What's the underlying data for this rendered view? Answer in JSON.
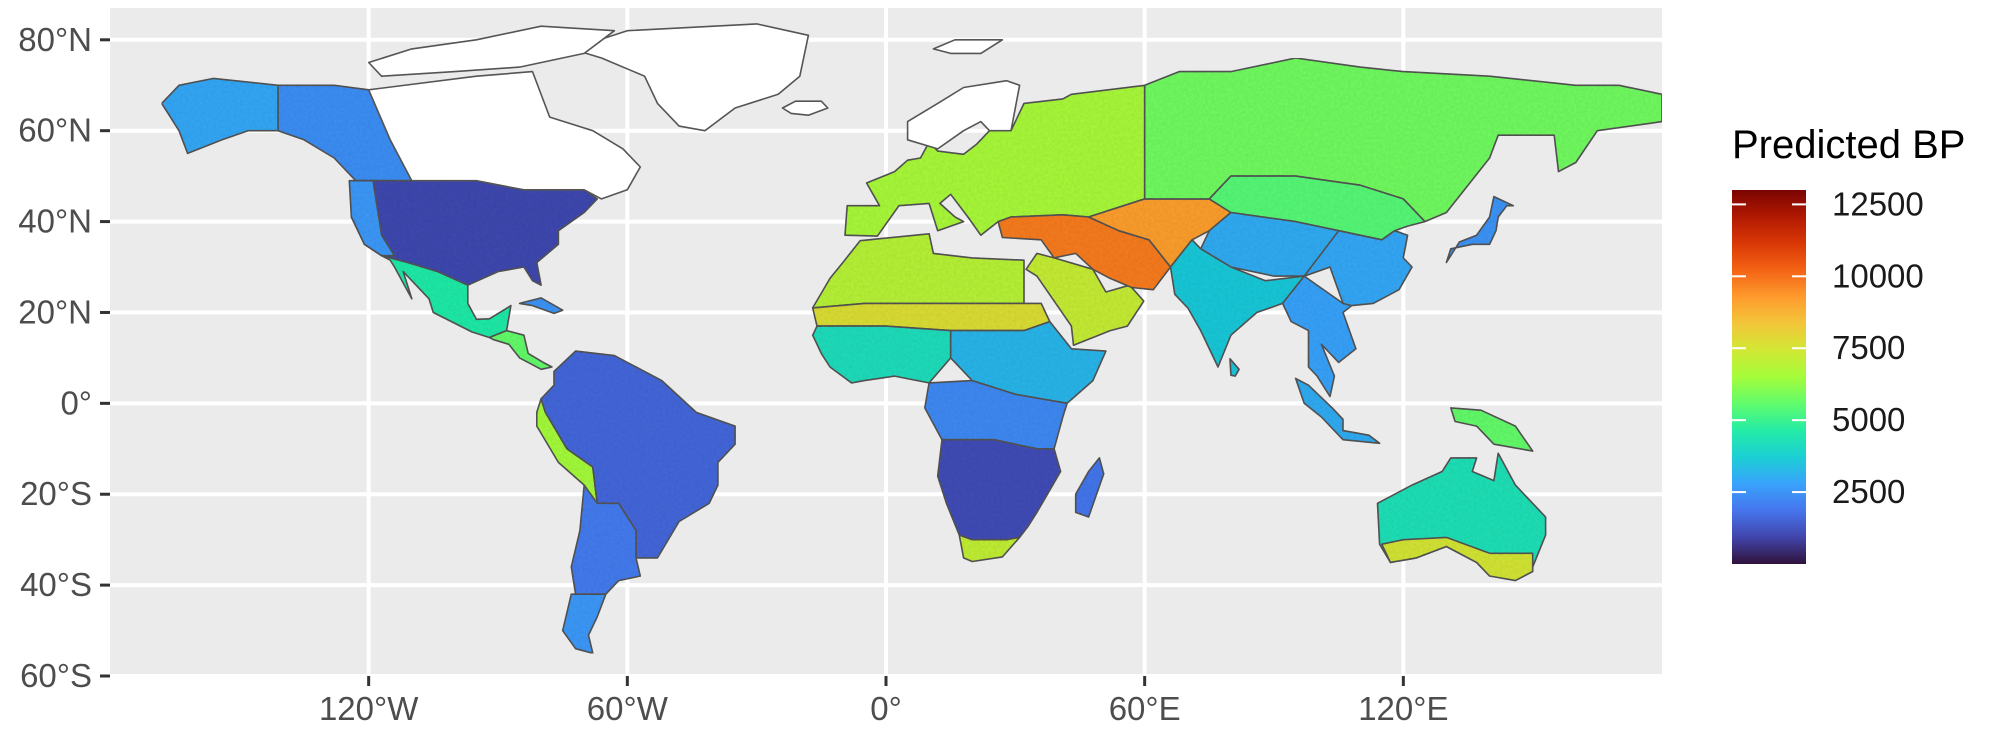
{
  "map": {
    "legend_title": "Predicted BP",
    "legend_ticks": [
      {
        "value": 12500,
        "label": "12500"
      },
      {
        "value": 10000,
        "label": "10000"
      },
      {
        "value": 7500,
        "label": "7500"
      },
      {
        "value": 5000,
        "label": "5000"
      },
      {
        "value": 2500,
        "label": "2500"
      }
    ],
    "color_range": [
      0,
      13000
    ],
    "lon_range": [
      -180,
      180
    ],
    "lat_range": [
      -60,
      87
    ],
    "lon_ticks": [
      {
        "value": -120,
        "label": "120°W"
      },
      {
        "value": -60,
        "label": "60°W"
      },
      {
        "value": 0,
        "label": "0°"
      },
      {
        "value": 60,
        "label": "60°E"
      },
      {
        "value": 120,
        "label": "120°E"
      }
    ],
    "lat_ticks": [
      {
        "value": 80,
        "label": "80°N"
      },
      {
        "value": 60,
        "label": "60°N"
      },
      {
        "value": 40,
        "label": "40°N"
      },
      {
        "value": 20,
        "label": "20°N"
      },
      {
        "value": 0,
        "label": "0°"
      },
      {
        "value": -20,
        "label": "20°S"
      },
      {
        "value": -40,
        "label": "40°S"
      },
      {
        "value": -60,
        "label": "60°S"
      }
    ],
    "colors": {
      "panel_background": "#ebebeb",
      "gridline": "#ffffff",
      "coastline": "#555555",
      "no_data_land": "#ffffff",
      "scale": [
        "#30123b",
        "#4145ab",
        "#4675ed",
        "#39a2fc",
        "#1bcfd4",
        "#24eca6",
        "#61fc6c",
        "#a4fc3b",
        "#d1e834",
        "#f3c63a",
        "#fe9b2d",
        "#f36315",
        "#d93806",
        "#b11901",
        "#7a0402"
      ]
    },
    "regions": [
      {
        "name": "Alaska",
        "value": 2900
      },
      {
        "name": "Western Canada",
        "value": 2400
      },
      {
        "name": "United States",
        "value": 1000
      },
      {
        "name": "US West Coast",
        "value": 2600
      },
      {
        "name": "Mexico",
        "value": 4600
      },
      {
        "name": "Central America",
        "value": 5600
      },
      {
        "name": "Cuba",
        "value": 2500
      },
      {
        "name": "Andes",
        "value": 6500
      },
      {
        "name": "Amazon and Brazil",
        "value": 1600
      },
      {
        "name": "Southern South America",
        "value": 2000
      },
      {
        "name": "Patagonia",
        "value": 2600
      },
      {
        "name": "North Africa",
        "value": 6900
      },
      {
        "name": "Sahara",
        "value": 7700
      },
      {
        "name": "West Africa",
        "value": 4200
      },
      {
        "name": "Sahel",
        "value": 3200
      },
      {
        "name": "Central Africa",
        "value": 2300
      },
      {
        "name": "Southern Africa",
        "value": 1100
      },
      {
        "name": "South Africa Cape",
        "value": 7100
      },
      {
        "name": "Madagascar",
        "value": 1900
      },
      {
        "name": "Arabia",
        "value": 7200
      },
      {
        "name": "Europe",
        "value": 6600
      },
      {
        "name": "Anatolia and Iran",
        "value": 9800
      },
      {
        "name": "Central Asia",
        "value": 9200
      },
      {
        "name": "Siberia",
        "value": 5800
      },
      {
        "name": "Mongolia and North China",
        "value": 5400
      },
      {
        "name": "Tibet",
        "value": 3000
      },
      {
        "name": "India",
        "value": 3600
      },
      {
        "name": "Southeast Asia",
        "value": 2800
      },
      {
        "name": "South China",
        "value": 2900
      },
      {
        "name": "Japan",
        "value": 2500
      },
      {
        "name": "Indonesia",
        "value": 3000
      },
      {
        "name": "New Guinea",
        "value": 5600
      },
      {
        "name": "Australia",
        "value": 4300
      },
      {
        "name": "South Australia coast",
        "value": 7500
      },
      {
        "name": "Sri Lanka",
        "value": 3500
      }
    ]
  }
}
